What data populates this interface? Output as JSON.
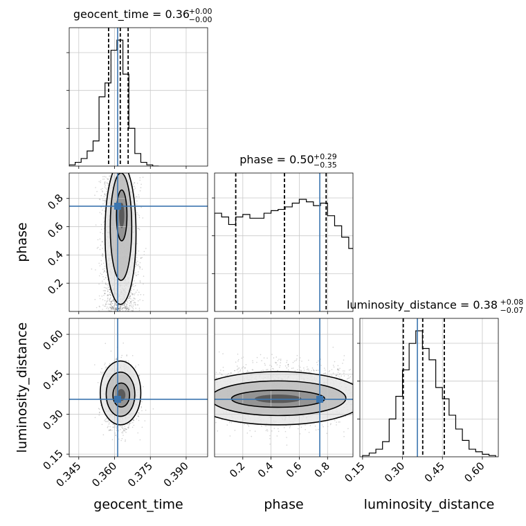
{
  "chart_data": {
    "type": "corner",
    "parameters": [
      "geocent_time",
      "phase",
      "luminosity_distance"
    ],
    "truths": {
      "geocent_time": 0.3613,
      "phase": 0.745,
      "luminosity_distance": 0.356
    },
    "colors": {
      "truth": "#3b75af",
      "contour": "#000000",
      "grid": "#c8c8c8"
    },
    "panels": [
      {
        "title_name": "geocent_time",
        "title_value": "0.36",
        "title_plus": "+0.00",
        "title_minus": "−0.00",
        "xlim": [
          0.341,
          0.399
        ],
        "quantiles": [
          0.3575,
          0.3624,
          0.3657
        ],
        "bins": [
          0.341,
          0.3435,
          0.346,
          0.3485,
          0.351,
          0.3535,
          0.356,
          0.3585,
          0.361,
          0.3635,
          0.366,
          0.3685,
          0.371,
          0.3735,
          0.376,
          0.3785
        ],
        "counts": [
          0.01,
          0.03,
          0.06,
          0.12,
          0.2,
          0.55,
          0.66,
          0.92,
          1.0,
          0.73,
          0.3,
          0.1,
          0.03,
          0.01,
          0.0
        ],
        "xticks": [
          "0.345",
          "0.360",
          "0.375",
          "0.390"
        ],
        "xtick_values": [
          0.345,
          0.36,
          0.375,
          0.39
        ],
        "xlabel": "geocent_time"
      },
      {
        "title_name": "phase",
        "title_value": "0.50",
        "title_plus": "+0.29",
        "title_minus": "−0.35",
        "xlim": [
          0.0,
          0.98
        ],
        "quantiles": [
          0.15,
          0.495,
          0.79
        ],
        "bins": [
          0.0,
          0.05,
          0.1,
          0.15,
          0.2,
          0.25,
          0.3,
          0.35,
          0.4,
          0.45,
          0.5,
          0.55,
          0.6,
          0.65,
          0.7,
          0.75,
          0.8,
          0.85,
          0.9,
          0.95,
          1.0
        ],
        "counts": [
          0.78,
          0.75,
          0.69,
          0.75,
          0.77,
          0.74,
          0.74,
          0.78,
          0.8,
          0.81,
          0.83,
          0.86,
          0.89,
          0.87,
          0.84,
          0.86,
          0.76,
          0.68,
          0.59,
          0.5
        ],
        "xticks": [
          "0.2",
          "0.4",
          "0.6",
          "0.8"
        ],
        "xtick_values": [
          0.2,
          0.4,
          0.6,
          0.8
        ],
        "xlabel": "phase"
      },
      {
        "title_name": "luminosity_distance",
        "title_value": "0.38",
        "title_plus": "+0.08",
        "title_minus": "−0.07",
        "xlim": [
          0.14,
          0.66
        ],
        "quantiles": [
          0.303,
          0.376,
          0.457
        ],
        "bins": [
          0.15,
          0.175,
          0.2,
          0.225,
          0.25,
          0.275,
          0.3,
          0.325,
          0.35,
          0.375,
          0.4,
          0.425,
          0.45,
          0.475,
          0.5,
          0.525,
          0.55,
          0.575,
          0.6,
          0.625,
          0.65
        ],
        "counts": [
          0.01,
          0.03,
          0.06,
          0.12,
          0.3,
          0.48,
          0.69,
          0.9,
          1.0,
          0.86,
          0.77,
          0.55,
          0.46,
          0.33,
          0.22,
          0.13,
          0.06,
          0.04,
          0.02,
          0.01
        ],
        "xticks": [
          "0.15",
          "0.30",
          "0.45",
          "0.60"
        ],
        "xtick_values": [
          0.15,
          0.3,
          0.45,
          0.6
        ],
        "xlabel": "luminosity_distance"
      }
    ],
    "scatter_panels": [
      {
        "x": "geocent_time",
        "y": "phase",
        "xlim": [
          0.341,
          0.399
        ],
        "ylim": [
          0.0,
          0.98
        ],
        "yticks": [
          "0.2",
          "0.4",
          "0.6",
          "0.8"
        ],
        "ytick_values": [
          0.2,
          0.4,
          0.6,
          0.8
        ],
        "ylabel": "phase",
        "center": [
          0.362,
          0.5
        ],
        "spread": [
          0.0035,
          0.28
        ],
        "contours": [
          {
            "cx": 0.3625,
            "cy": 0.55,
            "rx": 0.0065,
            "ry": 0.5
          },
          {
            "cx": 0.3627,
            "cy": 0.6,
            "rx": 0.0045,
            "ry": 0.38
          },
          {
            "cx": 0.363,
            "cy": 0.68,
            "rx": 0.0022,
            "ry": 0.18
          }
        ]
      },
      {
        "x": "geocent_time",
        "y": "luminosity_distance",
        "xlim": [
          0.341,
          0.399
        ],
        "ylim": [
          0.14,
          0.66
        ],
        "yticks": [
          "0.15",
          "0.30",
          "0.45",
          "0.60"
        ],
        "ytick_values": [
          0.15,
          0.3,
          0.45,
          0.6
        ],
        "ylabel": "luminosity_distance",
        "center": [
          0.3625,
          0.37
        ],
        "spread": [
          0.0032,
          0.055
        ],
        "contours": [
          {
            "cx": 0.3625,
            "cy": 0.38,
            "rx": 0.0085,
            "ry": 0.12
          },
          {
            "cx": 0.3625,
            "cy": 0.375,
            "rx": 0.006,
            "ry": 0.083
          },
          {
            "cx": 0.3628,
            "cy": 0.372,
            "rx": 0.0035,
            "ry": 0.045
          }
        ]
      },
      {
        "x": "phase",
        "y": "luminosity_distance",
        "xlim": [
          0.0,
          0.98
        ],
        "ylim": [
          0.14,
          0.66
        ],
        "center": [
          0.49,
          0.37
        ],
        "spread": [
          0.29,
          0.055
        ],
        "contours": [
          {
            "cx": 0.45,
            "cy": 0.36,
            "rx": 0.62,
            "ry": 0.1
          },
          {
            "cx": 0.45,
            "cy": 0.36,
            "rx": 0.48,
            "ry": 0.065
          },
          {
            "cx": 0.45,
            "cy": 0.358,
            "rx": 0.33,
            "ry": 0.032
          }
        ]
      }
    ]
  }
}
